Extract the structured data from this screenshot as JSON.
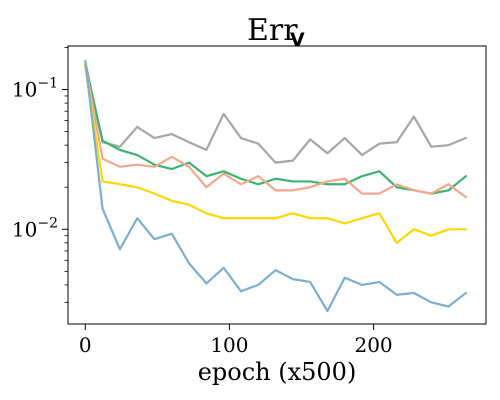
{
  "chart_data": {
    "type": "line",
    "title": "Err",
    "title_subscript": "V",
    "xlabel": "epoch (x500)",
    "ylabel": "",
    "xlim": [
      -12,
      278
    ],
    "ylim": [
      0.0021,
      0.205
    ],
    "yscale": "log",
    "grid": false,
    "x_ticks": [
      0,
      100,
      200
    ],
    "x_tick_labels": [
      "0",
      "100",
      "200"
    ],
    "y_ticks": [
      0.1,
      0.01
    ],
    "y_tick_labels": [
      {
        "base": "10",
        "exp": "−1"
      },
      {
        "base": "10",
        "exp": "−2"
      }
    ],
    "x": [
      0,
      12,
      24,
      36,
      48,
      60,
      72,
      84,
      96,
      108,
      120,
      132,
      144,
      156,
      168,
      180,
      192,
      204,
      216,
      228,
      240,
      252,
      264
    ],
    "series": [
      {
        "color": "#a6a6a6",
        "values": [
          0.158,
          0.042,
          0.039,
          0.054,
          0.045,
          0.048,
          0.042,
          0.037,
          0.067,
          0.045,
          0.041,
          0.03,
          0.031,
          0.044,
          0.035,
          0.045,
          0.034,
          0.041,
          0.042,
          0.064,
          0.039,
          0.04,
          0.045
        ]
      },
      {
        "color": "#3cb371",
        "values": [
          0.15,
          0.043,
          0.037,
          0.034,
          0.029,
          0.027,
          0.03,
          0.024,
          0.026,
          0.023,
          0.021,
          0.023,
          0.022,
          0.022,
          0.021,
          0.021,
          0.024,
          0.026,
          0.02,
          0.019,
          0.018,
          0.019,
          0.024
        ]
      },
      {
        "color": "#f4a78a",
        "values": [
          0.15,
          0.032,
          0.028,
          0.029,
          0.028,
          0.033,
          0.028,
          0.02,
          0.025,
          0.021,
          0.024,
          0.019,
          0.019,
          0.02,
          0.022,
          0.023,
          0.018,
          0.018,
          0.021,
          0.019,
          0.018,
          0.021,
          0.017
        ]
      },
      {
        "color": "#ffd700",
        "values": [
          0.145,
          0.022,
          0.021,
          0.02,
          0.018,
          0.016,
          0.015,
          0.013,
          0.012,
          0.012,
          0.012,
          0.012,
          0.013,
          0.012,
          0.012,
          0.011,
          0.012,
          0.013,
          0.008,
          0.01,
          0.009,
          0.01,
          0.01
        ]
      },
      {
        "color": "#7aafd0",
        "values": [
          0.16,
          0.014,
          0.0072,
          0.012,
          0.0085,
          0.0093,
          0.0057,
          0.0041,
          0.0053,
          0.0036,
          0.004,
          0.0051,
          0.0044,
          0.0042,
          0.0026,
          0.0045,
          0.004,
          0.0042,
          0.0034,
          0.0035,
          0.003,
          0.0028,
          0.0035
        ]
      }
    ]
  }
}
